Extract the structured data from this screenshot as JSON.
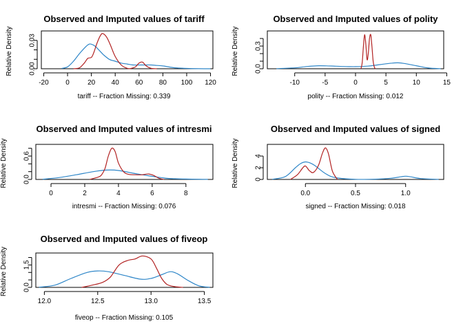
{
  "colors": {
    "observed": "#2e86c8",
    "imputed": "#b22222",
    "frame": "#000000"
  },
  "chart_data": [
    {
      "type": "line",
      "title": "Observed and Imputed values of tariff",
      "ylabel": "Relative Density",
      "xlabel": "tariff  --  Fraction Missing: 0.339",
      "xlim": [
        -22,
        122
      ],
      "ylim": [
        0,
        0.04
      ],
      "xticks": [
        -20,
        0,
        20,
        40,
        60,
        80,
        100,
        120
      ],
      "xtick_labels": [
        "-20",
        "0",
        "20",
        "40",
        "60",
        "80",
        "100",
        "120"
      ],
      "yticks": [
        0,
        0.01,
        0.02,
        0.03
      ],
      "ytick_labels": [
        "0.00",
        "",
        "",
        "0.03"
      ],
      "series": [
        {
          "role": "observed",
          "x": [
            -5,
            0,
            5,
            10,
            15,
            18,
            20,
            23,
            27,
            30,
            35,
            40,
            45,
            50,
            55,
            60,
            65,
            70,
            75,
            80,
            90,
            100,
            110,
            120
          ],
          "y": [
            0.0003,
            0.002,
            0.008,
            0.016,
            0.023,
            0.026,
            0.026,
            0.024,
            0.019,
            0.015,
            0.01,
            0.008,
            0.006,
            0.005,
            0.004,
            0.004,
            0.004,
            0.004,
            0.0035,
            0.003,
            0.001,
            0.0004,
            0.0001,
            0.0
          ]
        },
        {
          "role": "imputed",
          "x": [
            5,
            10,
            14,
            17,
            20,
            22,
            25,
            28,
            30,
            33,
            36,
            40,
            45,
            50,
            53,
            57,
            60,
            63,
            66,
            70,
            75
          ],
          "y": [
            0.0,
            0.001,
            0.006,
            0.011,
            0.012,
            0.017,
            0.028,
            0.036,
            0.037,
            0.033,
            0.025,
            0.013,
            0.004,
            0.0005,
            0.0003,
            0.002,
            0.006,
            0.007,
            0.003,
            0.0005,
            0.0
          ]
        }
      ]
    },
    {
      "type": "line",
      "title": "Observed and Imputed values of polity",
      "ylabel": "Relative Density",
      "xlabel": "polity  --  Fraction Missing: 0.012",
      "xlim": [
        -14.5,
        14.5
      ],
      "ylim": [
        0,
        0.5
      ],
      "xticks": [
        -10,
        -5,
        0,
        5,
        10,
        15
      ],
      "xtick_labels": [
        "-10",
        "-5",
        "0",
        "5",
        "10",
        "15"
      ],
      "yticks": [
        0,
        0.1,
        0.2,
        0.3,
        0.4
      ],
      "ytick_labels": [
        "0.0",
        "",
        "",
        "0.3",
        ""
      ],
      "series": [
        {
          "role": "observed",
          "x": [
            -13,
            -10,
            -8,
            -6,
            -4,
            -2,
            0,
            2,
            4,
            6,
            7,
            8,
            10,
            12,
            14
          ],
          "y": [
            0.002,
            0.012,
            0.03,
            0.04,
            0.036,
            0.03,
            0.028,
            0.035,
            0.055,
            0.075,
            0.078,
            0.07,
            0.04,
            0.01,
            0.001
          ]
        },
        {
          "role": "imputed",
          "x": [
            0.9,
            1.1,
            1.3,
            1.5,
            1.7,
            1.9,
            2.1,
            2.3,
            2.5,
            2.7,
            2.9,
            3.1,
            3.3
          ],
          "y": [
            0.0,
            0.08,
            0.3,
            0.45,
            0.32,
            0.12,
            0.2,
            0.4,
            0.45,
            0.3,
            0.1,
            0.02,
            0.0
          ]
        }
      ]
    },
    {
      "type": "line",
      "title": "Observed and Imputed values of intresmi",
      "ylabel": "Relative Density",
      "xlabel": "intresmi  --  Fraction Missing: 0.076",
      "xlim": [
        -0.9,
        9.6
      ],
      "ylim": [
        0,
        0.9
      ],
      "xticks": [
        0,
        2,
        4,
        6,
        8
      ],
      "xtick_labels": [
        "0",
        "2",
        "4",
        "6",
        "8"
      ],
      "yticks": [
        0,
        0.2,
        0.4,
        0.6,
        0.8
      ],
      "ytick_labels": [
        "0.0",
        "",
        "",
        "0.6",
        ""
      ],
      "series": [
        {
          "role": "observed",
          "x": [
            -0.5,
            0.5,
            1.5,
            2.5,
            3.3,
            4,
            5,
            6,
            6.5,
            7,
            8,
            9.3
          ],
          "y": [
            0.005,
            0.05,
            0.12,
            0.2,
            0.24,
            0.23,
            0.15,
            0.08,
            0.05,
            0.025,
            0.01,
            0.002
          ]
        },
        {
          "role": "imputed",
          "x": [
            2.3,
            2.8,
            3.0,
            3.2,
            3.4,
            3.6,
            3.8,
            4.0,
            4.3,
            4.6,
            5.0,
            5.4,
            5.8,
            6.1,
            6.4,
            6.7
          ],
          "y": [
            0.0,
            0.06,
            0.12,
            0.28,
            0.6,
            0.8,
            0.72,
            0.42,
            0.2,
            0.13,
            0.12,
            0.12,
            0.14,
            0.1,
            0.03,
            0.0
          ]
        }
      ]
    },
    {
      "type": "line",
      "title": "Observed and Imputed values of signed",
      "ylabel": "Relative Density",
      "xlabel": "signed  --  Fraction Missing: 0.018",
      "xlim": [
        -0.38,
        1.38
      ],
      "ylim": [
        0,
        6
      ],
      "xticks": [
        0,
        0.5,
        1
      ],
      "xtick_labels": [
        "0.0",
        "0.5",
        "1.0"
      ],
      "yticks": [
        0,
        2,
        4
      ],
      "ytick_labels": [
        "0",
        "2",
        "4"
      ],
      "series": [
        {
          "role": "observed",
          "x": [
            -0.33,
            -0.2,
            -0.1,
            -0.05,
            0,
            0.05,
            0.1,
            0.2,
            0.3,
            0.5,
            0.7,
            0.85,
            0.95,
            1.0,
            1.05,
            1.15,
            1.33
          ],
          "y": [
            0.02,
            0.5,
            2.0,
            2.7,
            3.0,
            2.8,
            2.3,
            1.0,
            0.3,
            0.02,
            0.05,
            0.2,
            0.45,
            0.55,
            0.45,
            0.15,
            0.01
          ]
        },
        {
          "role": "imputed",
          "x": [
            -0.15,
            -0.08,
            -0.03,
            0.0,
            0.04,
            0.08,
            0.13,
            0.17,
            0.2,
            0.23,
            0.27,
            0.32
          ],
          "y": [
            0.0,
            0.8,
            1.9,
            2.3,
            1.5,
            1.2,
            2.4,
            4.5,
            5.4,
            4.4,
            1.4,
            0.0
          ]
        }
      ]
    },
    {
      "type": "line",
      "title": "Observed and Imputed values of fiveop",
      "ylabel": "Relative Density",
      "xlabel": "fiveop  --  Fraction Missing: 0.105",
      "xlim": [
        11.92,
        13.58
      ],
      "ylim": [
        0,
        2.3
      ],
      "xticks": [
        12,
        12.5,
        13,
        13.5
      ],
      "xtick_labels": [
        "12.0",
        "12.5",
        "13.0",
        "13.5"
      ],
      "yticks": [
        0,
        0.5,
        1,
        1.5,
        2
      ],
      "ytick_labels": [
        "0.0",
        "",
        "",
        "1.5",
        ""
      ],
      "series": [
        {
          "role": "observed",
          "x": [
            11.95,
            12.1,
            12.25,
            12.4,
            12.5,
            12.6,
            12.75,
            12.9,
            13.0,
            13.1,
            13.18,
            13.25,
            13.35,
            13.45,
            13.55
          ],
          "y": [
            0.01,
            0.15,
            0.6,
            1.0,
            1.1,
            1.05,
            0.8,
            0.55,
            0.6,
            0.85,
            1.05,
            0.9,
            0.45,
            0.1,
            0.01
          ]
        },
        {
          "role": "imputed",
          "x": [
            12.35,
            12.45,
            12.55,
            12.62,
            12.7,
            12.78,
            12.85,
            12.92,
            13.0,
            13.05,
            13.1,
            13.15,
            13.22,
            13.3
          ],
          "y": [
            0.0,
            0.15,
            0.35,
            0.7,
            1.5,
            1.8,
            1.9,
            2.1,
            1.9,
            1.3,
            0.6,
            0.2,
            0.05,
            0.0
          ]
        }
      ]
    }
  ]
}
